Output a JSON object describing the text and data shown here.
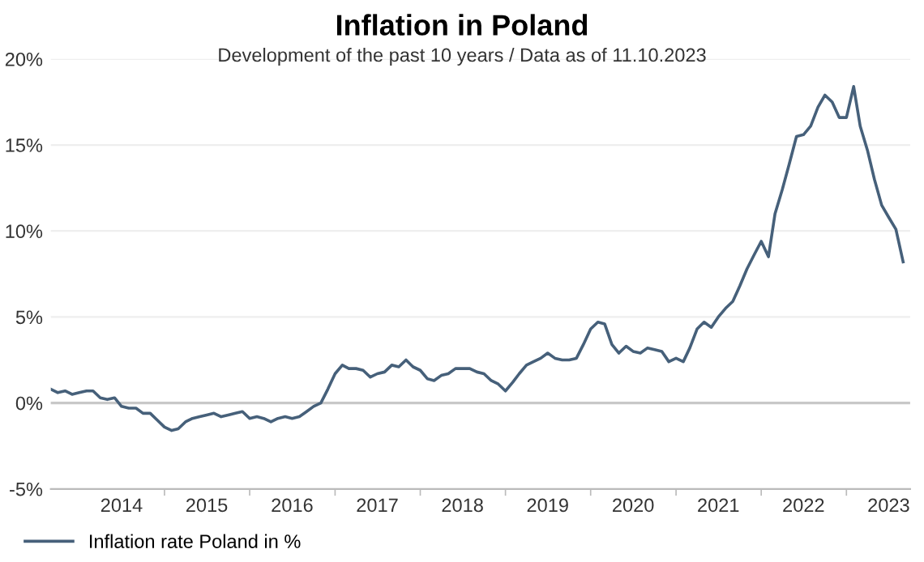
{
  "chart_data": {
    "type": "line",
    "title": "Inflation in Poland",
    "subtitle": "Development of the past 10 years / Data as of 11.10.2023",
    "x": [
      "2013-09",
      "2013-10",
      "2013-11",
      "2013-12",
      "2014-01",
      "2014-02",
      "2014-03",
      "2014-04",
      "2014-05",
      "2014-06",
      "2014-07",
      "2014-08",
      "2014-09",
      "2014-10",
      "2014-11",
      "2014-12",
      "2015-01",
      "2015-02",
      "2015-03",
      "2015-04",
      "2015-05",
      "2015-06",
      "2015-07",
      "2015-08",
      "2015-09",
      "2015-10",
      "2015-11",
      "2015-12",
      "2016-01",
      "2016-02",
      "2016-03",
      "2016-04",
      "2016-05",
      "2016-06",
      "2016-07",
      "2016-08",
      "2016-09",
      "2016-10",
      "2016-11",
      "2016-12",
      "2017-01",
      "2017-02",
      "2017-03",
      "2017-04",
      "2017-05",
      "2017-06",
      "2017-07",
      "2017-08",
      "2017-09",
      "2017-10",
      "2017-11",
      "2017-12",
      "2018-01",
      "2018-02",
      "2018-03",
      "2018-04",
      "2018-05",
      "2018-06",
      "2018-07",
      "2018-08",
      "2018-09",
      "2018-10",
      "2018-11",
      "2018-12",
      "2019-01",
      "2019-02",
      "2019-03",
      "2019-04",
      "2019-05",
      "2019-06",
      "2019-07",
      "2019-08",
      "2019-09",
      "2019-10",
      "2019-11",
      "2019-12",
      "2020-01",
      "2020-02",
      "2020-03",
      "2020-04",
      "2020-05",
      "2020-06",
      "2020-07",
      "2020-08",
      "2020-09",
      "2020-10",
      "2020-11",
      "2020-12",
      "2021-01",
      "2021-02",
      "2021-03",
      "2021-04",
      "2021-05",
      "2021-06",
      "2021-07",
      "2021-08",
      "2021-09",
      "2021-10",
      "2021-11",
      "2021-12",
      "2022-01",
      "2022-02",
      "2022-03",
      "2022-04",
      "2022-05",
      "2022-06",
      "2022-07",
      "2022-08",
      "2022-09",
      "2022-10",
      "2022-11",
      "2022-12",
      "2023-01",
      "2023-02",
      "2023-03",
      "2023-04",
      "2023-05",
      "2023-06",
      "2023-07",
      "2023-08",
      "2023-09"
    ],
    "series": [
      {
        "name": "Inflation rate Poland in %",
        "color": "#46607a",
        "values": [
          0.8,
          0.6,
          0.7,
          0.5,
          0.6,
          0.7,
          0.7,
          0.3,
          0.2,
          0.3,
          -0.2,
          -0.3,
          -0.3,
          -0.6,
          -0.6,
          -1.0,
          -1.4,
          -1.6,
          -1.5,
          -1.1,
          -0.9,
          -0.8,
          -0.7,
          -0.6,
          -0.8,
          -0.7,
          -0.6,
          -0.5,
          -0.9,
          -0.8,
          -0.9,
          -1.1,
          -0.9,
          -0.8,
          -0.9,
          -0.8,
          -0.5,
          -0.2,
          0.0,
          0.8,
          1.7,
          2.2,
          2.0,
          2.0,
          1.9,
          1.5,
          1.7,
          1.8,
          2.2,
          2.1,
          2.5,
          2.1,
          1.9,
          1.4,
          1.3,
          1.6,
          1.7,
          2.0,
          2.0,
          2.0,
          1.8,
          1.7,
          1.3,
          1.1,
          0.7,
          1.2,
          1.7,
          2.2,
          2.4,
          2.6,
          2.9,
          2.6,
          2.5,
          2.5,
          2.6,
          3.4,
          4.3,
          4.7,
          4.6,
          3.4,
          2.9,
          3.3,
          3.0,
          2.9,
          3.2,
          3.1,
          3.0,
          2.4,
          2.6,
          2.4,
          3.2,
          4.3,
          4.7,
          4.4,
          5.0,
          5.5,
          5.9,
          6.8,
          7.8,
          8.6,
          9.4,
          8.5,
          11.0,
          12.4,
          13.9,
          15.5,
          15.6,
          16.1,
          17.2,
          17.9,
          17.5,
          16.6,
          16.6,
          18.4,
          16.1,
          14.7,
          13.0,
          11.5,
          10.8,
          10.1,
          8.2
        ]
      }
    ],
    "xlim": [
      "2013-09",
      "2023-10"
    ],
    "xticks": [
      {
        "value": "2014-07",
        "label": "2014"
      },
      {
        "value": "2015-01",
        "label": null
      },
      {
        "value": "2015-07",
        "label": "2015"
      },
      {
        "value": "2016-01",
        "label": null
      },
      {
        "value": "2016-07",
        "label": "2016"
      },
      {
        "value": "2017-01",
        "label": null
      },
      {
        "value": "2017-07",
        "label": "2017"
      },
      {
        "value": "2018-01",
        "label": null
      },
      {
        "value": "2018-07",
        "label": "2018"
      },
      {
        "value": "2019-01",
        "label": null
      },
      {
        "value": "2019-07",
        "label": "2019"
      },
      {
        "value": "2020-01",
        "label": null
      },
      {
        "value": "2020-07",
        "label": "2020"
      },
      {
        "value": "2021-01",
        "label": null
      },
      {
        "value": "2021-07",
        "label": "2021"
      },
      {
        "value": "2022-01",
        "label": null
      },
      {
        "value": "2022-07",
        "label": "2022"
      },
      {
        "value": "2023-01",
        "label": null
      },
      {
        "value": "2023-07",
        "label": "2023"
      }
    ],
    "ylim": [
      -5,
      20
    ],
    "yticks": [
      {
        "value": -5,
        "label": "-5%"
      },
      {
        "value": 0,
        "label": "0%"
      },
      {
        "value": 5,
        "label": "5%"
      },
      {
        "value": 10,
        "label": "10%"
      },
      {
        "value": 15,
        "label": "15%"
      },
      {
        "value": 20,
        "label": "20%"
      }
    ],
    "ref_lines": [
      {
        "axis": "y",
        "value": 0,
        "label": null,
        "color": "#c8c8c8"
      }
    ],
    "grid": "y",
    "legend": "bottom left",
    "marker": "none",
    "line_style": "solid"
  }
}
